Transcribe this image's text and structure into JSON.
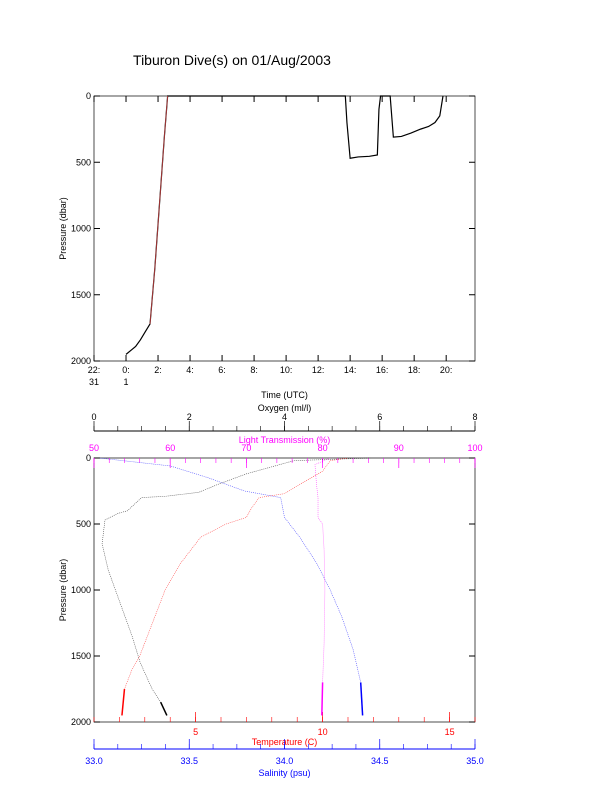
{
  "title": "Tiburon Dive(s) on 01/Aug/2003",
  "chart_data": [
    {
      "type": "line",
      "name": "dive-track",
      "xlabel": "Time (UTC)",
      "ylabel": "Pressure (dbar)",
      "xlim": [
        -2,
        21.8
      ],
      "ylim": [
        2000,
        0
      ],
      "xticks": [
        {
          "v": -2,
          "l1": "22:",
          "l2": "31"
        },
        {
          "v": 0,
          "l1": "0:",
          "l2": "1"
        },
        {
          "v": 2,
          "l1": "2:",
          "l2": ""
        },
        {
          "v": 4,
          "l1": "4:",
          "l2": ""
        },
        {
          "v": 6,
          "l1": "6:",
          "l2": ""
        },
        {
          "v": 8,
          "l1": "8:",
          "l2": ""
        },
        {
          "v": 10,
          "l1": "10:",
          "l2": ""
        },
        {
          "v": 12,
          "l1": "12:",
          "l2": ""
        },
        {
          "v": 14,
          "l1": "14:",
          "l2": ""
        },
        {
          "v": 16,
          "l1": "16:",
          "l2": ""
        },
        {
          "v": 18,
          "l1": "18:",
          "l2": ""
        },
        {
          "v": 20,
          "l1": "20:",
          "l2": ""
        }
      ],
      "yticks": [
        "0",
        "500",
        "1000",
        "1500",
        "2000"
      ],
      "series": [
        {
          "name": "Pressure",
          "color": "#000000",
          "points": [
            [
              0,
              1950
            ],
            [
              0.3,
              1920
            ],
            [
              0.6,
              1890
            ],
            [
              0.9,
              1840
            ],
            [
              1.2,
              1780
            ],
            [
              1.5,
              1720
            ],
            [
              1.8,
              1300
            ],
            [
              2.1,
              800
            ],
            [
              2.4,
              300
            ],
            [
              2.6,
              0
            ],
            [
              13.7,
              0
            ],
            [
              13.8,
              200
            ],
            [
              14.0,
              470
            ],
            [
              14.5,
              460
            ],
            [
              15.2,
              455
            ],
            [
              15.7,
              445
            ],
            [
              15.8,
              100
            ],
            [
              15.9,
              0
            ],
            [
              16.5,
              0
            ],
            [
              16.7,
              310
            ],
            [
              17.2,
              305
            ],
            [
              17.8,
              280
            ],
            [
              18.4,
              250
            ],
            [
              18.9,
              230
            ],
            [
              19.3,
              200
            ],
            [
              19.6,
              150
            ],
            [
              19.8,
              0
            ]
          ]
        }
      ]
    },
    {
      "type": "scatter",
      "name": "profiles",
      "ylabel": "Pressure (dbar)",
      "ylim": [
        2000,
        0
      ],
      "yticks": [
        "0",
        "500",
        "1000",
        "1500",
        "2000"
      ],
      "axes": [
        {
          "key": "oxygen",
          "label": "Oxygen (ml/l)",
          "range": [
            0,
            8
          ],
          "ticks": [
            "0",
            "2",
            "4",
            "6",
            "8"
          ],
          "color": "#000000"
        },
        {
          "key": "light",
          "label": "Light Transmission (%)",
          "range": [
            50,
            100
          ],
          "ticks": [
            "50",
            "60",
            "70",
            "80",
            "90",
            "100"
          ],
          "color": "#ff00ff"
        },
        {
          "key": "temp",
          "label": "Temperature (C)",
          "range": [
            1,
            16
          ],
          "ticks": [
            "5",
            "10",
            "15"
          ],
          "color": "#ff0000"
        },
        {
          "key": "sal",
          "label": "Salinity (psu)",
          "range": [
            33,
            35
          ],
          "ticks": [
            "33.0",
            "33.5",
            "34.0",
            "34.5",
            "35.0"
          ],
          "color": "#0000ff"
        }
      ],
      "series": [
        {
          "name": "Oxygen",
          "axis": "oxygen",
          "color": "#000000",
          "points": [
            [
              1.53,
              1950
            ],
            [
              1.4,
              1850
            ],
            [
              1.22,
              1750
            ],
            [
              0.97,
              1550
            ],
            [
              0.8,
              1350
            ],
            [
              0.55,
              1100
            ],
            [
              0.3,
              850
            ],
            [
              0.17,
              650
            ],
            [
              0.23,
              470
            ],
            [
              0.5,
              420
            ],
            [
              0.7,
              400
            ],
            [
              1.0,
              300
            ],
            [
              1.5,
              290
            ],
            [
              2.2,
              260
            ],
            [
              2.6,
              200
            ],
            [
              3.2,
              120
            ],
            [
              3.8,
              60
            ],
            [
              4.2,
              20
            ],
            [
              5.8,
              0
            ]
          ]
        },
        {
          "name": "Temperature",
          "axis": "temp",
          "color": "#ff0000",
          "points": [
            [
              2.1,
              1950
            ],
            [
              2.2,
              1750
            ],
            [
              2.5,
              1600
            ],
            [
              2.8,
              1500
            ],
            [
              3.3,
              1250
            ],
            [
              3.8,
              1000
            ],
            [
              4.4,
              800
            ],
            [
              5.2,
              600
            ],
            [
              6.2,
              500
            ],
            [
              7.0,
              450
            ],
            [
              7.2,
              380
            ],
            [
              7.5,
              300
            ],
            [
              8.5,
              270
            ],
            [
              9.1,
              200
            ],
            [
              10.0,
              100
            ],
            [
              10.3,
              20
            ],
            [
              11.0,
              0
            ]
          ]
        },
        {
          "name": "Salinity",
          "axis": "sal",
          "color": "#0000ff",
          "points": [
            [
              34.41,
              1950
            ],
            [
              34.4,
              1700
            ],
            [
              34.36,
              1450
            ],
            [
              34.3,
              1200
            ],
            [
              34.24,
              1000
            ],
            [
              34.17,
              800
            ],
            [
              34.08,
              600
            ],
            [
              34.0,
              450
            ],
            [
              33.98,
              300
            ],
            [
              33.79,
              250
            ],
            [
              33.6,
              150
            ],
            [
              33.4,
              60
            ],
            [
              33.15,
              20
            ],
            [
              33.03,
              0
            ]
          ]
        },
        {
          "name": "Light Transmission",
          "axis": "light",
          "color": "#ff00ff",
          "points": [
            [
              79.9,
              1950
            ],
            [
              80.0,
              1700
            ],
            [
              80.2,
              1400
            ],
            [
              80.3,
              1000
            ],
            [
              80.2,
              700
            ],
            [
              80.0,
              500
            ],
            [
              79.4,
              450
            ],
            [
              79.4,
              300
            ],
            [
              79.2,
              200
            ],
            [
              79.0,
              50
            ],
            [
              81.0,
              0
            ]
          ]
        }
      ]
    }
  ]
}
